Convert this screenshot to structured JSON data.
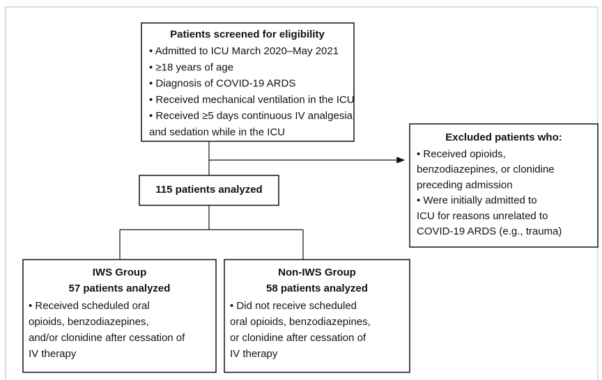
{
  "screening": {
    "title": "Patients screened for eligibility",
    "lines": [
      "• Admitted to ICU March 2020–May 2021",
      "• ≥18 years of age",
      "• Diagnosis of COVID-19 ARDS",
      "• Received mechanical ventilation in the ICU",
      "• Received ≥5 days continuous IV analgesia",
      "and sedation while in the ICU"
    ]
  },
  "excluded": {
    "title": "Excluded patients who:",
    "lines": [
      "• Received opioids,",
      "benzodiazepines, or clonidine",
      "preceding admission",
      "• Were initially admitted to",
      "ICU for reasons unrelated to",
      "COVID-19 ARDS (e.g., trauma)"
    ]
  },
  "analyzed": {
    "title": "115 patients analyzed"
  },
  "groups": [
    {
      "title": "IWS Group",
      "subtitle": "57 patients analyzed",
      "lines": [
        "• Received scheduled oral",
        "opioids, benzodiazepines,",
        "and/or clonidine after cessation of",
        "IV therapy"
      ]
    },
    {
      "title": "Non-IWS Group",
      "subtitle": "58 patients analyzed",
      "lines": [
        "• Did not receive scheduled",
        "oral opioids, benzodiazepines,",
        "or clonidine after cessation of",
        "IV therapy"
      ]
    }
  ]
}
